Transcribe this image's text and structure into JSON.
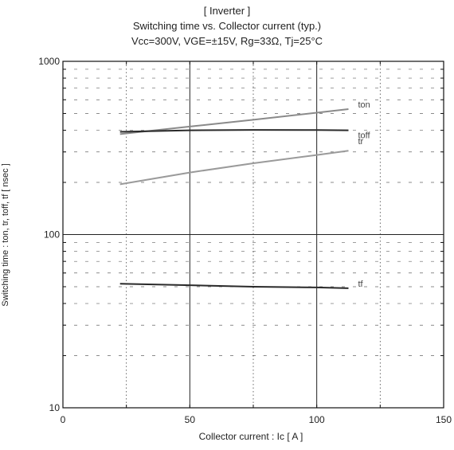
{
  "title": {
    "line1": "[ Inverter ]",
    "line2": "Switching time  vs.  Collector current  (typ.)",
    "line3": "Vcc=300V, VGE=±15V, Rg=33Ω, Tj=25°C"
  },
  "chart_data": {
    "type": "line",
    "xlabel": "Collector current  :  Ic  [ A ]",
    "ylabel": "Switching time  :  ton, tr, toff, tf  [ nsec ]",
    "xlim": [
      0,
      150
    ],
    "ylim": [
      10,
      1000
    ],
    "yscale": "log",
    "grid": true,
    "xticks": [
      "0",
      "50",
      "100",
      "150"
    ],
    "yticks": [
      "10",
      "100",
      "1000"
    ],
    "series": [
      {
        "name": "ton",
        "x": [
          22.5,
          50,
          75,
          100,
          112.5
        ],
        "y": [
          380,
          420,
          460,
          505,
          530
        ],
        "color": "#8a8a8a"
      },
      {
        "name": "toff",
        "x": [
          22.5,
          50,
          75,
          100,
          112.5
        ],
        "y": [
          392,
          400,
          402,
          401,
          400
        ],
        "color": "#2a2a2a"
      },
      {
        "name": "tr",
        "x": [
          22.5,
          50,
          75,
          100,
          112.5
        ],
        "y": [
          195,
          228,
          258,
          288,
          305
        ],
        "color": "#9a9a9a"
      },
      {
        "name": "tf",
        "x": [
          22.5,
          50,
          75,
          100,
          112.5
        ],
        "y": [
          52,
          51,
          50,
          49.5,
          49
        ],
        "color": "#2a2a2a"
      }
    ]
  }
}
